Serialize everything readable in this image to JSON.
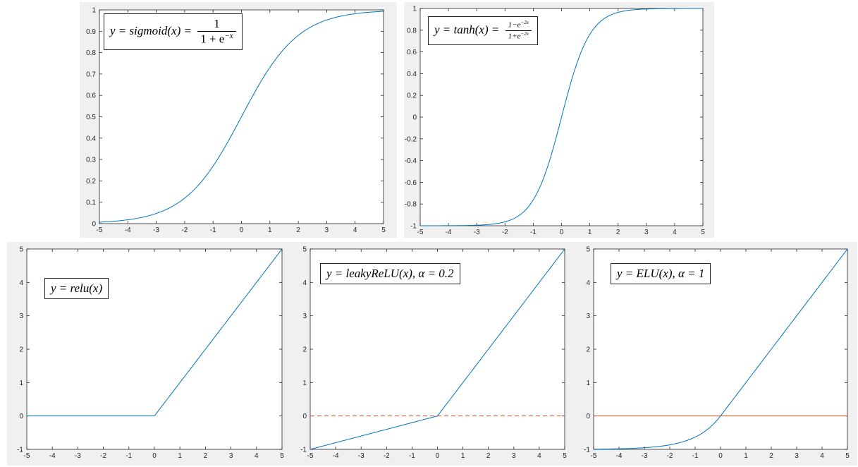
{
  "chart_data": [
    {
      "type": "line",
      "function": "sigmoid",
      "legend": {
        "lhs": "y = sigmoid(x) =",
        "num": "1",
        "den": "1 + e",
        "den_exp": "−x"
      },
      "xlim": [
        -5,
        5
      ],
      "ylim": [
        0,
        1
      ],
      "xticks": [
        -5,
        -4,
        -3,
        -2,
        -1,
        0,
        1,
        2,
        3,
        4,
        5
      ],
      "yticks": [
        0,
        0.1,
        0.2,
        0.3,
        0.4,
        0.5,
        0.6,
        0.7,
        0.8,
        0.9,
        1
      ],
      "xtick_labels": [
        "-5",
        "-4",
        "-3",
        "-2",
        "-1",
        "0",
        "1",
        "2",
        "3",
        "4",
        "5"
      ],
      "ytick_labels": [
        "0",
        "0.1",
        "0.2",
        "0.3",
        "0.4",
        "0.5",
        "0.6",
        "0.7",
        "0.8",
        "0.9",
        "1"
      ],
      "x": [
        -5,
        -4,
        -3,
        -2,
        -1,
        0,
        1,
        2,
        3,
        4,
        5
      ],
      "y": [
        0.007,
        0.018,
        0.047,
        0.119,
        0.269,
        0.5,
        0.731,
        0.881,
        0.953,
        0.982,
        0.993
      ],
      "series_color": "#0072bd",
      "grid": false
    },
    {
      "type": "line",
      "function": "tanh",
      "legend": {
        "lhs": "y = tanh(x) =",
        "num": "1−e",
        "num_exp": "−2x",
        "den": "1+e",
        "den_exp": "−2x"
      },
      "xlim": [
        -5,
        5
      ],
      "ylim": [
        -1,
        1
      ],
      "xticks": [
        -5,
        -4,
        -3,
        -2,
        -1,
        0,
        1,
        2,
        3,
        4,
        5
      ],
      "yticks": [
        -1,
        -0.8,
        -0.6,
        -0.4,
        -0.2,
        0,
        0.2,
        0.4,
        0.6,
        0.8,
        1
      ],
      "xtick_labels": [
        "-5",
        "-4",
        "-3",
        "-2",
        "-1",
        "0",
        "1",
        "2",
        "3",
        "4",
        "5"
      ],
      "ytick_labels": [
        "-1",
        "-0.8",
        "-0.6",
        "-0.4",
        "-0.2",
        "0",
        "0.2",
        "0.4",
        "0.6",
        "0.8",
        "1"
      ],
      "x": [
        -5,
        -4,
        -3,
        -2,
        -1,
        0,
        1,
        2,
        3,
        4,
        5
      ],
      "y": [
        -1.0,
        -0.999,
        -0.995,
        -0.964,
        -0.762,
        0,
        0.762,
        0.964,
        0.995,
        0.999,
        1.0
      ],
      "series_color": "#0072bd",
      "grid": false
    },
    {
      "type": "line",
      "function": "relu",
      "legend": {
        "lhs": "y = relu(x)"
      },
      "xlim": [
        -5,
        5
      ],
      "ylim": [
        -1,
        5
      ],
      "xticks": [
        -5,
        -4,
        -3,
        -2,
        -1,
        0,
        1,
        2,
        3,
        4,
        5
      ],
      "yticks": [
        -1,
        0,
        1,
        2,
        3,
        4,
        5
      ],
      "xtick_labels": [
        "-5",
        "-4",
        "-3",
        "-2",
        "-1",
        "0",
        "1",
        "2",
        "3",
        "4",
        "5"
      ],
      "ytick_labels": [
        "-1",
        "0",
        "1",
        "2",
        "3",
        "4",
        "5"
      ],
      "x": [
        -5,
        0,
        5
      ],
      "y": [
        0,
        0,
        5
      ],
      "series_color": "#0072bd",
      "grid": false
    },
    {
      "type": "line",
      "function": "leakyrelu",
      "legend": {
        "lhs": "y = leakyReLU(x),  α = 0.2"
      },
      "xlim": [
        -5,
        5
      ],
      "ylim": [
        -1,
        5
      ],
      "xticks": [
        -5,
        -4,
        -3,
        -2,
        -1,
        0,
        1,
        2,
        3,
        4,
        5
      ],
      "yticks": [
        -1,
        0,
        1,
        2,
        3,
        4,
        5
      ],
      "xtick_labels": [
        "-5",
        "-4",
        "-3",
        "-2",
        "-1",
        "0",
        "1",
        "2",
        "3",
        "4",
        "5"
      ],
      "ytick_labels": [
        "-1",
        "0",
        "1",
        "2",
        "3",
        "4",
        "5"
      ],
      "x": [
        -5,
        0,
        5
      ],
      "y": [
        -1,
        0,
        5
      ],
      "series_color": "#0072bd",
      "reference_line": {
        "y": 0,
        "style": "dashed",
        "color": "#d95319"
      },
      "grid": false
    },
    {
      "type": "line",
      "function": "elu",
      "legend": {
        "lhs": "y = ELU(x), α = 1"
      },
      "xlim": [
        -5,
        5
      ],
      "ylim": [
        -1,
        5
      ],
      "xticks": [
        -5,
        -4,
        -3,
        -2,
        -1,
        0,
        1,
        2,
        3,
        4,
        5
      ],
      "yticks": [
        -1,
        0,
        1,
        2,
        3,
        4,
        5
      ],
      "xtick_labels": [
        "-5",
        "-4",
        "-3",
        "-2",
        "-1",
        "0",
        "1",
        "2",
        "3",
        "4",
        "5"
      ],
      "ytick_labels": [
        "-1",
        "0",
        "1",
        "2",
        "3",
        "4",
        "5"
      ],
      "x": [
        -5,
        -4,
        -3,
        -2,
        -1,
        0,
        1,
        2,
        3,
        4,
        5
      ],
      "y": [
        -0.993,
        -0.982,
        -0.95,
        -0.865,
        -0.632,
        0,
        1,
        2,
        3,
        4,
        5
      ],
      "series_color": "#0072bd",
      "reference_line": {
        "y": 0,
        "style": "solid",
        "color": "#d95319"
      },
      "grid": false
    }
  ]
}
